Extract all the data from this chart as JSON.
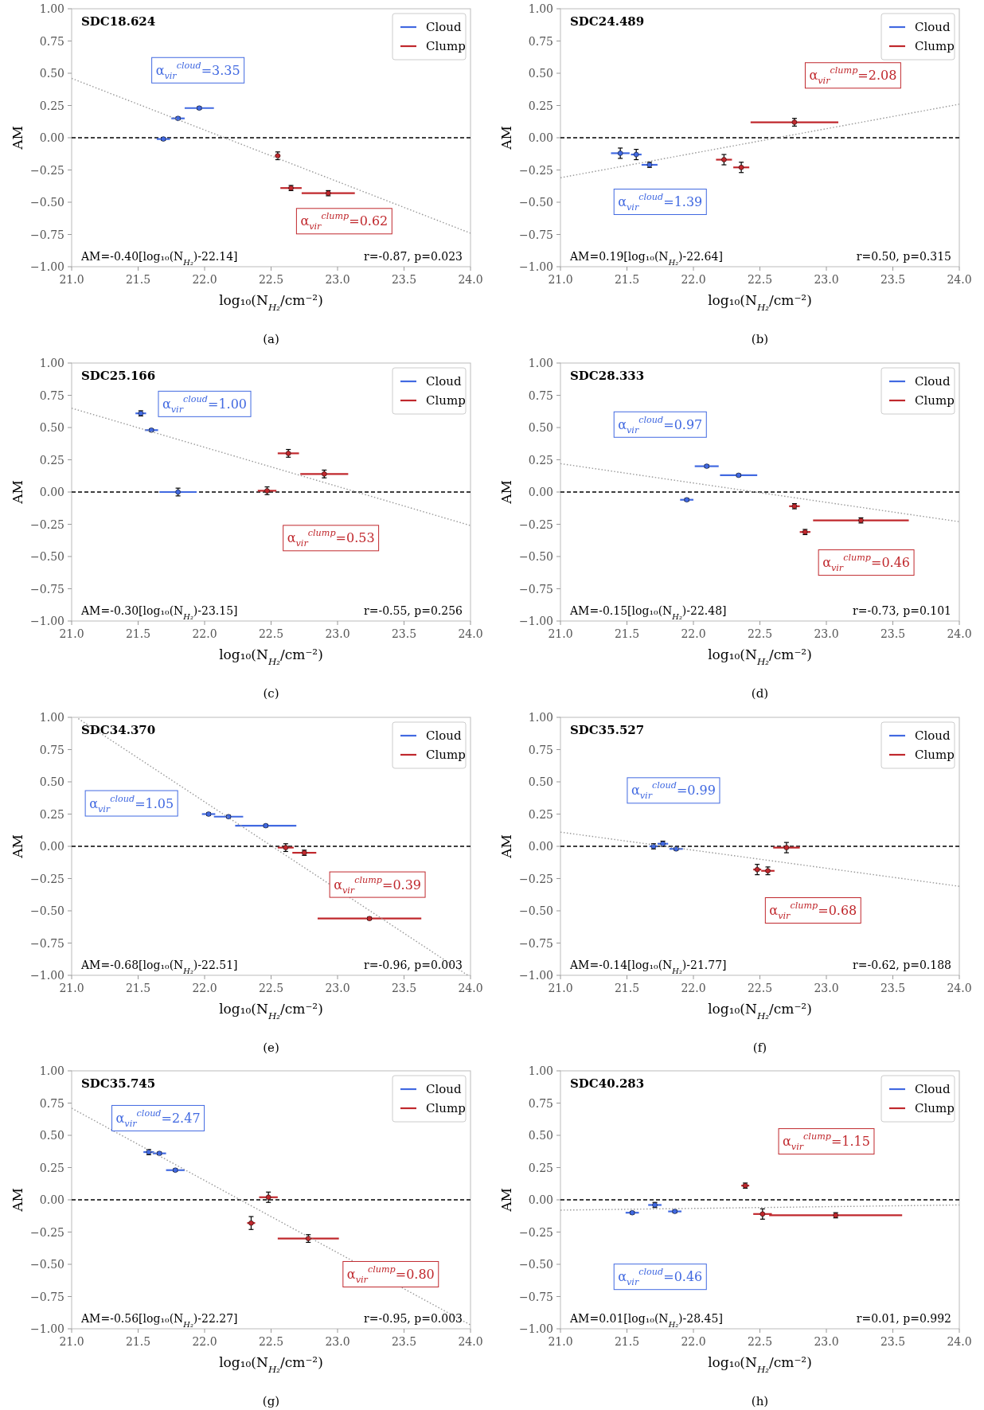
{
  "chart_data": [
    {
      "type": "scatter",
      "title": "SDC18.624",
      "xlabel": "log₁₀(N$_{H₂}$/cm⁻²)",
      "ylabel": "AM",
      "xlim": [
        21,
        24
      ],
      "ylim": [
        -1,
        1
      ],
      "legend": "top right",
      "marker": "circle",
      "xticks": [
        {
          "value": 21,
          "label": "21.0"
        },
        {
          "value": 21.5,
          "label": "21.5"
        },
        {
          "value": 22,
          "label": "22.0"
        },
        {
          "value": 22.5,
          "label": "22.5"
        },
        {
          "value": 23,
          "label": "23.0"
        },
        {
          "value": 23.5,
          "label": "23.5"
        },
        {
          "value": 24,
          "label": "24.0"
        }
      ],
      "yticks": [
        {
          "value": -1,
          "label": "−1.00"
        },
        {
          "value": -0.75,
          "label": "−0.75"
        },
        {
          "value": -0.5,
          "label": "−0.50"
        },
        {
          "value": -0.25,
          "label": "−0.25"
        },
        {
          "value": 0,
          "label": "0.00"
        },
        {
          "value": 0.25,
          "label": "0.25"
        },
        {
          "value": 0.5,
          "label": "0.50"
        },
        {
          "value": 0.75,
          "label": "0.75"
        },
        {
          "value": 1,
          "label": "1.00"
        }
      ],
      "series": [
        {
          "name": "Cloud",
          "color": "#4169e1",
          "x": [
            21.69,
            21.8,
            21.96
          ],
          "values": [
            -0.01,
            0.15,
            0.23
          ],
          "errors": [
            0.01,
            0.01,
            0.01
          ],
          "xerrors": [
            0.05,
            0.05,
            0.11
          ]
        },
        {
          "name": "Clump",
          "color": "#c0282d",
          "x": [
            22.55,
            22.65,
            22.93
          ],
          "values": [
            -0.14,
            -0.39,
            -0.43
          ],
          "errors": [
            0.03,
            0.02,
            0.02
          ],
          "xerrors": [
            0.02,
            0.08,
            0.2
          ]
        },
        {
          "type": "line",
          "color": "#999999",
          "line_style": "dotted",
          "marker": "none",
          "x": [
            21,
            24
          ],
          "values": [
            0.46,
            -0.74
          ]
        }
      ],
      "ref_lines": [
        {
          "axis": "y",
          "value": 0,
          "color": "#000000",
          "line_style": "dashed"
        }
      ],
      "annotations": [
        "α$_{vir}$$^{cloud}$=3.35",
        "α$_{vir}$$^{clump}$=0.62",
        "AM=-0.40[log₁₀(N$_{H₂}$)-22.14]",
        "r=-0.87, p=0.023",
        "(a)"
      ]
    },
    {
      "type": "scatter",
      "title": "SDC24.489",
      "xlabel": "log₁₀(N$_{H₂}$/cm⁻²)",
      "ylabel": "AM",
      "xlim": [
        21,
        24
      ],
      "ylim": [
        -1,
        1
      ],
      "legend": "top right",
      "marker": "circle",
      "xticks": [
        {
          "value": 21,
          "label": "21.0"
        },
        {
          "value": 21.5,
          "label": "21.5"
        },
        {
          "value": 22,
          "label": "22.0"
        },
        {
          "value": 22.5,
          "label": "22.5"
        },
        {
          "value": 23,
          "label": "23.0"
        },
        {
          "value": 23.5,
          "label": "23.5"
        },
        {
          "value": 24,
          "label": "24.0"
        }
      ],
      "yticks": [
        {
          "value": -1,
          "label": "−1.00"
        },
        {
          "value": -0.75,
          "label": "−0.75"
        },
        {
          "value": -0.5,
          "label": "−0.50"
        },
        {
          "value": -0.25,
          "label": "−0.25"
        },
        {
          "value": 0,
          "label": "0.00"
        },
        {
          "value": 0.25,
          "label": "0.25"
        },
        {
          "value": 0.5,
          "label": "0.50"
        },
        {
          "value": 0.75,
          "label": "0.75"
        },
        {
          "value": 1,
          "label": "1.00"
        }
      ],
      "series": [
        {
          "name": "Cloud",
          "color": "#4169e1",
          "x": [
            21.45,
            21.57,
            21.67
          ],
          "values": [
            -0.12,
            -0.13,
            -0.21
          ],
          "errors": [
            0.04,
            0.04,
            0.02
          ],
          "xerrors": [
            0.07,
            0.04,
            0.06
          ]
        },
        {
          "name": "Clump",
          "color": "#c0282d",
          "x": [
            22.23,
            22.36,
            22.76
          ],
          "values": [
            -0.17,
            -0.23,
            0.12
          ],
          "errors": [
            0.04,
            0.04,
            0.03
          ],
          "xerrors": [
            0.06,
            0.06,
            0.33
          ]
        },
        {
          "type": "line",
          "color": "#999999",
          "line_style": "dotted",
          "marker": "none",
          "x": [
            21,
            24
          ],
          "values": [
            -0.31,
            0.26
          ]
        }
      ],
      "ref_lines": [
        {
          "axis": "y",
          "value": 0,
          "color": "#000000",
          "line_style": "dashed"
        }
      ],
      "annotations": [
        "α$_{vir}$$^{cloud}$=1.39",
        "α$_{vir}$$^{clump}$=2.08",
        "AM=0.19[log₁₀(N$_{H₂}$)-22.64]",
        "r=0.50, p=0.315",
        "(b)"
      ]
    },
    {
      "type": "scatter",
      "title": "SDC25.166",
      "xlabel": "log₁₀(N$_{H₂}$/cm⁻²)",
      "ylabel": "AM",
      "xlim": [
        21,
        24
      ],
      "ylim": [
        -1,
        1
      ],
      "legend": "top right",
      "marker": "circle",
      "xticks": [
        {
          "value": 21,
          "label": "21.0"
        },
        {
          "value": 21.5,
          "label": "21.5"
        },
        {
          "value": 22,
          "label": "22.0"
        },
        {
          "value": 22.5,
          "label": "22.5"
        },
        {
          "value": 23,
          "label": "23.0"
        },
        {
          "value": 23.5,
          "label": "23.5"
        },
        {
          "value": 24,
          "label": "24.0"
        }
      ],
      "yticks": [
        {
          "value": -1,
          "label": "−1.00"
        },
        {
          "value": -0.75,
          "label": "−0.75"
        },
        {
          "value": -0.5,
          "label": "−0.50"
        },
        {
          "value": -0.25,
          "label": "−0.25"
        },
        {
          "value": 0,
          "label": "0.00"
        },
        {
          "value": 0.25,
          "label": "0.25"
        },
        {
          "value": 0.5,
          "label": "0.50"
        },
        {
          "value": 0.75,
          "label": "0.75"
        },
        {
          "value": 1,
          "label": "1.00"
        }
      ],
      "series": [
        {
          "name": "Cloud",
          "color": "#4169e1",
          "x": [
            21.52,
            21.6,
            21.8
          ],
          "values": [
            0.61,
            0.48,
            0
          ],
          "errors": [
            0.02,
            0.01,
            0.03
          ],
          "xerrors": [
            0.04,
            0.05,
            0.14
          ]
        },
        {
          "name": "Clump",
          "color": "#c0282d",
          "x": [
            22.47,
            22.63,
            22.9
          ],
          "values": [
            0.01,
            0.3,
            0.14
          ],
          "errors": [
            0.03,
            0.03,
            0.03
          ],
          "xerrors": [
            0.07,
            0.08,
            0.18
          ]
        },
        {
          "type": "line",
          "color": "#999999",
          "line_style": "dotted",
          "marker": "none",
          "x": [
            21,
            24
          ],
          "values": [
            0.65,
            -0.26
          ]
        }
      ],
      "ref_lines": [
        {
          "axis": "y",
          "value": 0,
          "color": "#000000",
          "line_style": "dashed"
        }
      ],
      "annotations": [
        "α$_{vir}$$^{cloud}$=1.00",
        "α$_{vir}$$^{clump}$=0.53",
        "AM=-0.30[log₁₀(N$_{H₂}$)-23.15]",
        "r=-0.55, p=0.256",
        "(c)"
      ]
    },
    {
      "type": "scatter",
      "title": "SDC28.333",
      "xlabel": "log₁₀(N$_{H₂}$/cm⁻²)",
      "ylabel": "AM",
      "xlim": [
        21,
        24
      ],
      "ylim": [
        -1,
        1
      ],
      "legend": "top right",
      "marker": "circle",
      "xticks": [
        {
          "value": 21,
          "label": "21.0"
        },
        {
          "value": 21.5,
          "label": "21.5"
        },
        {
          "value": 22,
          "label": "22.0"
        },
        {
          "value": 22.5,
          "label": "22.5"
        },
        {
          "value": 23,
          "label": "23.0"
        },
        {
          "value": 23.5,
          "label": "23.5"
        },
        {
          "value": 24,
          "label": "24.0"
        }
      ],
      "yticks": [
        {
          "value": -1,
          "label": "−1.00"
        },
        {
          "value": -0.75,
          "label": "−0.75"
        },
        {
          "value": -0.5,
          "label": "−0.50"
        },
        {
          "value": -0.25,
          "label": "−0.25"
        },
        {
          "value": 0,
          "label": "0.00"
        },
        {
          "value": 0.25,
          "label": "0.25"
        },
        {
          "value": 0.5,
          "label": "0.50"
        },
        {
          "value": 0.75,
          "label": "0.75"
        },
        {
          "value": 1,
          "label": "1.00"
        }
      ],
      "series": [
        {
          "name": "Cloud",
          "color": "#4169e1",
          "x": [
            21.95,
            22.1,
            22.34
          ],
          "values": [
            -0.06,
            0.2,
            0.13
          ],
          "errors": [
            0.01,
            0.01,
            0.01
          ],
          "xerrors": [
            0.05,
            0.09,
            0.14
          ]
        },
        {
          "name": "Clump",
          "color": "#c0282d",
          "x": [
            22.76,
            22.84,
            23.26
          ],
          "values": [
            -0.11,
            -0.31,
            -0.22
          ],
          "errors": [
            0.02,
            0.02,
            0.02
          ],
          "xerrors": [
            0.04,
            0.04,
            0.36
          ]
        },
        {
          "type": "line",
          "color": "#999999",
          "line_style": "dotted",
          "marker": "none",
          "x": [
            21,
            24
          ],
          "values": [
            0.22,
            -0.23
          ]
        }
      ],
      "ref_lines": [
        {
          "axis": "y",
          "value": 0,
          "color": "#000000",
          "line_style": "dashed"
        }
      ],
      "annotations": [
        "α$_{vir}$$^{cloud}$=0.97",
        "α$_{vir}$$^{clump}$=0.46",
        "AM=-0.15[log₁₀(N$_{H₂}$)-22.48]",
        "r=-0.73, p=0.101",
        "(d)"
      ]
    },
    {
      "type": "scatter",
      "title": "SDC34.370",
      "xlabel": "log₁₀(N$_{H₂}$/cm⁻²)",
      "ylabel": "AM",
      "xlim": [
        21,
        24
      ],
      "ylim": [
        -1,
        1
      ],
      "legend": "top right",
      "marker": "circle",
      "xticks": [
        {
          "value": 21,
          "label": "21.0"
        },
        {
          "value": 21.5,
          "label": "21.5"
        },
        {
          "value": 22,
          "label": "22.0"
        },
        {
          "value": 22.5,
          "label": "22.5"
        },
        {
          "value": 23,
          "label": "23.0"
        },
        {
          "value": 23.5,
          "label": "23.5"
        },
        {
          "value": 24,
          "label": "24.0"
        }
      ],
      "yticks": [
        {
          "value": -1,
          "label": "−1.00"
        },
        {
          "value": -0.75,
          "label": "−0.75"
        },
        {
          "value": -0.5,
          "label": "−0.50"
        },
        {
          "value": -0.25,
          "label": "−0.25"
        },
        {
          "value": 0,
          "label": "0.00"
        },
        {
          "value": 0.25,
          "label": "0.25"
        },
        {
          "value": 0.5,
          "label": "0.50"
        },
        {
          "value": 0.75,
          "label": "0.75"
        },
        {
          "value": 1,
          "label": "1.00"
        }
      ],
      "series": [
        {
          "name": "Cloud",
          "color": "#4169e1",
          "x": [
            22.03,
            22.18,
            22.46
          ],
          "values": [
            0.25,
            0.23,
            0.16
          ],
          "errors": [
            0.01,
            0.01,
            0.01
          ],
          "xerrors": [
            0.05,
            0.11,
            0.23
          ]
        },
        {
          "name": "Clump",
          "color": "#c0282d",
          "x": [
            22.61,
            22.75,
            23.24
          ],
          "values": [
            -0.01,
            -0.05,
            -0.56
          ],
          "errors": [
            0.03,
            0.02,
            0.01
          ],
          "xerrors": [
            0.06,
            0.09,
            0.39
          ]
        },
        {
          "type": "line",
          "color": "#999999",
          "line_style": "dotted",
          "marker": "none",
          "x": [
            21.05,
            23.98
          ],
          "values": [
            0.99,
            -1.0
          ]
        }
      ],
      "ref_lines": [
        {
          "axis": "y",
          "value": 0,
          "color": "#000000",
          "line_style": "dashed"
        }
      ],
      "annotations": [
        "α$_{vir}$$^{cloud}$=1.05",
        "α$_{vir}$$^{clump}$=0.39",
        "AM=-0.68[log₁₀(N$_{H₂}$)-22.51]",
        "r=-0.96, p=0.003",
        "(e)"
      ]
    },
    {
      "type": "scatter",
      "title": "SDC35.527",
      "xlabel": "log₁₀(N$_{H₂}$/cm⁻²)",
      "ylabel": "AM",
      "xlim": [
        21,
        24
      ],
      "ylim": [
        -1,
        1
      ],
      "legend": "top right",
      "marker": "circle",
      "xticks": [
        {
          "value": 21,
          "label": "21.0"
        },
        {
          "value": 21.5,
          "label": "21.5"
        },
        {
          "value": 22,
          "label": "22.0"
        },
        {
          "value": 22.5,
          "label": "22.5"
        },
        {
          "value": 23,
          "label": "23.0"
        },
        {
          "value": 23.5,
          "label": "23.5"
        },
        {
          "value": 24,
          "label": "24.0"
        }
      ],
      "yticks": [
        {
          "value": -1,
          "label": "−1.00"
        },
        {
          "value": -0.75,
          "label": "−0.75"
        },
        {
          "value": -0.5,
          "label": "−0.50"
        },
        {
          "value": -0.25,
          "label": "−0.25"
        },
        {
          "value": 0,
          "label": "0.00"
        },
        {
          "value": 0.25,
          "label": "0.25"
        },
        {
          "value": 0.5,
          "label": "0.50"
        },
        {
          "value": 0.75,
          "label": "0.75"
        },
        {
          "value": 1,
          "label": "1.00"
        }
      ],
      "series": [
        {
          "name": "Cloud",
          "color": "#4169e1",
          "x": [
            21.7,
            21.77,
            21.87
          ],
          "values": [
            0,
            0.02,
            -0.02
          ],
          "errors": [
            0.02,
            0.02,
            0.01
          ],
          "xerrors": [
            0.03,
            0.04,
            0.05
          ]
        },
        {
          "name": "Clump",
          "color": "#c0282d",
          "x": [
            22.48,
            22.56,
            22.7
          ],
          "values": [
            -0.18,
            -0.19,
            -0.01
          ],
          "errors": [
            0.04,
            0.03,
            0.04
          ],
          "xerrors": [
            0.03,
            0.05,
            0.1
          ]
        },
        {
          "type": "line",
          "color": "#999999",
          "line_style": "dotted",
          "marker": "none",
          "x": [
            21,
            24
          ],
          "values": [
            0.11,
            -0.31
          ]
        }
      ],
      "ref_lines": [
        {
          "axis": "y",
          "value": 0,
          "color": "#000000",
          "line_style": "dashed"
        }
      ],
      "annotations": [
        "α$_{vir}$$^{cloud}$=0.99",
        "α$_{vir}$$^{clump}$=0.68",
        "AM=-0.14[log₁₀(N$_{H₂}$)-21.77]",
        "r=-0.62, p=0.188",
        "(f)"
      ]
    },
    {
      "type": "scatter",
      "title": "SDC35.745",
      "xlabel": "log₁₀(N$_{H₂}$/cm⁻²)",
      "ylabel": "AM",
      "xlim": [
        21,
        24
      ],
      "ylim": [
        -1,
        1
      ],
      "legend": "top right",
      "marker": "circle",
      "xticks": [
        {
          "value": 21,
          "label": "21.0"
        },
        {
          "value": 21.5,
          "label": "21.5"
        },
        {
          "value": 22,
          "label": "22.0"
        },
        {
          "value": 22.5,
          "label": "22.5"
        },
        {
          "value": 23,
          "label": "23.0"
        },
        {
          "value": 23.5,
          "label": "23.5"
        },
        {
          "value": 24,
          "label": "24.0"
        }
      ],
      "yticks": [
        {
          "value": -1,
          "label": "−1.00"
        },
        {
          "value": -0.75,
          "label": "−0.75"
        },
        {
          "value": -0.5,
          "label": "−0.50"
        },
        {
          "value": -0.25,
          "label": "−0.25"
        },
        {
          "value": 0,
          "label": "0.00"
        },
        {
          "value": 0.25,
          "label": "0.25"
        },
        {
          "value": 0.5,
          "label": "0.50"
        },
        {
          "value": 0.75,
          "label": "0.75"
        },
        {
          "value": 1,
          "label": "1.00"
        }
      ],
      "series": [
        {
          "name": "Cloud",
          "color": "#4169e1",
          "x": [
            21.58,
            21.66,
            21.78
          ],
          "values": [
            0.37,
            0.36,
            0.23
          ],
          "errors": [
            0.02,
            0.01,
            0.01
          ],
          "xerrors": [
            0.04,
            0.05,
            0.07
          ]
        },
        {
          "name": "Clump",
          "color": "#c0282d",
          "x": [
            22.35,
            22.48,
            22.78
          ],
          "values": [
            -0.18,
            0.02,
            -0.3
          ],
          "errors": [
            0.05,
            0.04,
            0.03
          ],
          "xerrors": [
            0.03,
            0.07,
            0.23
          ]
        },
        {
          "type": "line",
          "color": "#999999",
          "line_style": "dotted",
          "marker": "none",
          "x": [
            21,
            24
          ],
          "values": [
            0.71,
            -0.97
          ]
        }
      ],
      "ref_lines": [
        {
          "axis": "y",
          "value": 0,
          "color": "#000000",
          "line_style": "dashed"
        }
      ],
      "annotations": [
        "α$_{vir}$$^{cloud}$=2.47",
        "α$_{vir}$$^{clump}$=0.80",
        "AM=-0.56[log₁₀(N$_{H₂}$)-22.27]",
        "r=-0.95, p=0.003",
        "(g)"
      ]
    },
    {
      "type": "scatter",
      "title": "SDC40.283",
      "xlabel": "log₁₀(N$_{H₂}$/cm⁻²)",
      "ylabel": "AM",
      "xlim": [
        21,
        24
      ],
      "ylim": [
        -1,
        1
      ],
      "legend": "top right",
      "marker": "circle",
      "xticks": [
        {
          "value": 21,
          "label": "21.0"
        },
        {
          "value": 21.5,
          "label": "21.5"
        },
        {
          "value": 22,
          "label": "22.0"
        },
        {
          "value": 22.5,
          "label": "22.5"
        },
        {
          "value": 23,
          "label": "23.0"
        },
        {
          "value": 23.5,
          "label": "23.5"
        },
        {
          "value": 24,
          "label": "24.0"
        }
      ],
      "yticks": [
        {
          "value": -1,
          "label": "−1.00"
        },
        {
          "value": -0.75,
          "label": "−0.75"
        },
        {
          "value": -0.5,
          "label": "−0.50"
        },
        {
          "value": -0.25,
          "label": "−0.25"
        },
        {
          "value": 0,
          "label": "0.00"
        },
        {
          "value": 0.25,
          "label": "0.25"
        },
        {
          "value": 0.5,
          "label": "0.50"
        },
        {
          "value": 0.75,
          "label": "0.75"
        },
        {
          "value": 1,
          "label": "1.00"
        }
      ],
      "series": [
        {
          "name": "Cloud",
          "color": "#4169e1",
          "x": [
            21.54,
            21.71,
            21.86
          ],
          "values": [
            -0.1,
            -0.04,
            -0.09
          ],
          "errors": [
            0.01,
            0.02,
            0.01
          ],
          "xerrors": [
            0.05,
            0.05,
            0.05
          ]
        },
        {
          "name": "Clump",
          "color": "#c0282d",
          "x": [
            22.39,
            22.52,
            23.07
          ],
          "values": [
            0.11,
            -0.11,
            -0.12
          ],
          "errors": [
            0.02,
            0.04,
            0.02
          ],
          "xerrors": [
            0.03,
            0.07,
            0.5
          ]
        },
        {
          "type": "line",
          "color": "#999999",
          "line_style": "dotted",
          "marker": "none",
          "x": [
            21,
            24
          ],
          "values": [
            -0.08,
            -0.04
          ]
        }
      ],
      "ref_lines": [
        {
          "axis": "y",
          "value": 0,
          "color": "#000000",
          "line_style": "dashed"
        }
      ],
      "annotations": [
        "α$_{vir}$$^{cloud}$=0.46",
        "α$_{vir}$$^{clump}$=1.15",
        "AM=0.01[log₁₀(N$_{H₂}$)-28.45]",
        "r=0.01, p=0.992",
        "(h)"
      ]
    }
  ]
}
